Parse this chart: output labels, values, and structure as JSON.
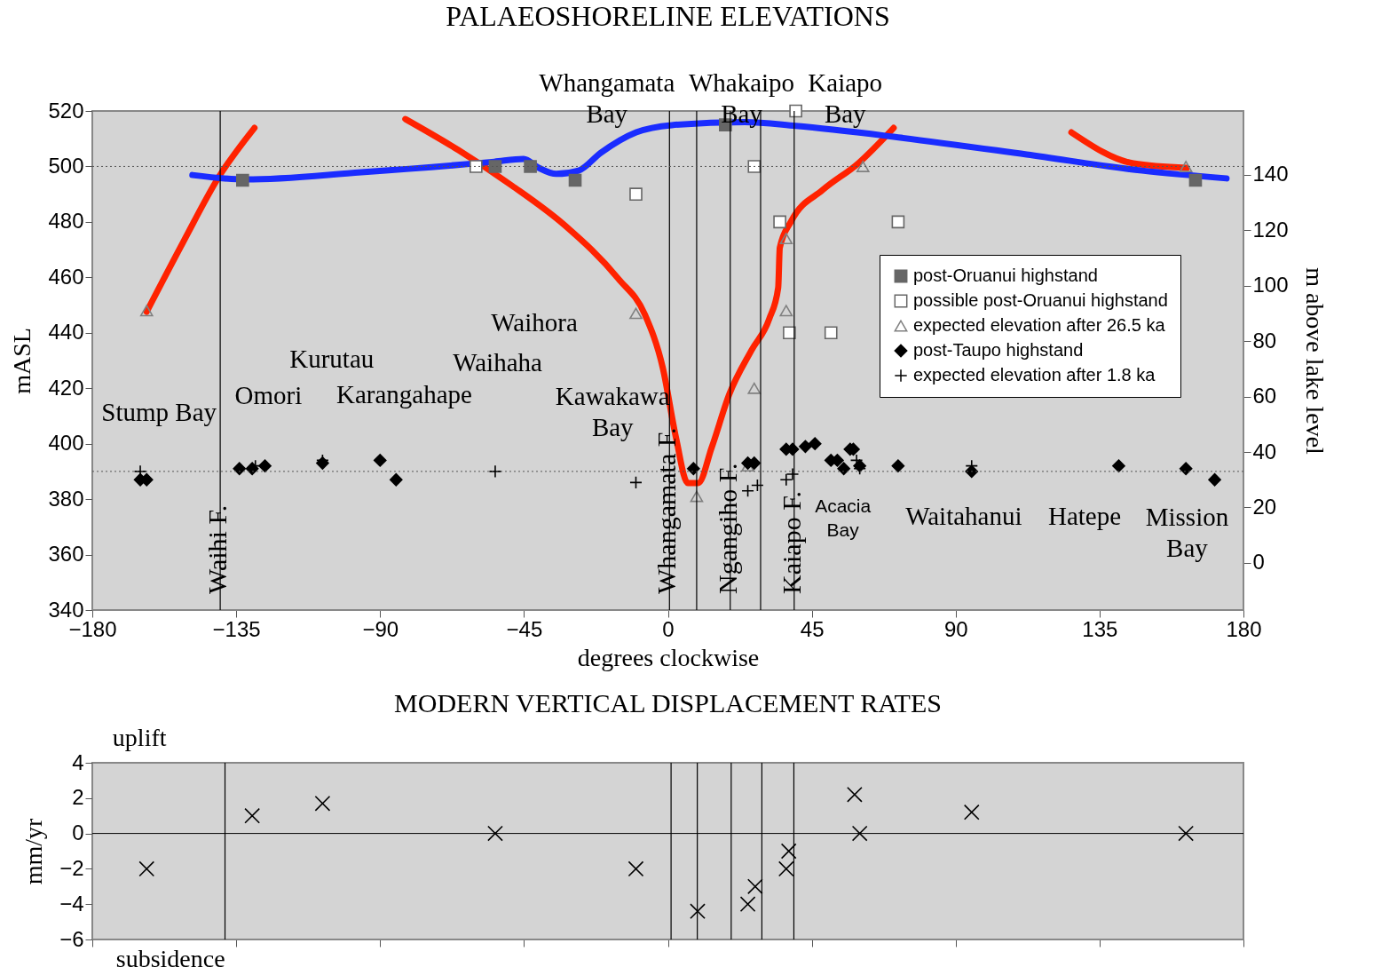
{
  "chart_data": [
    {
      "type": "scatter",
      "title": "PALAEOSHORELINE ELEVATIONS",
      "xlabel": "degrees clockwise",
      "ylabel": "mASL",
      "y2label": "m above lake level",
      "xlim": [
        -180,
        180
      ],
      "xticks": [
        -180,
        -135,
        -90,
        -45,
        0,
        45,
        90,
        135,
        180
      ],
      "ylim": [
        340,
        520
      ],
      "yticks": [
        340,
        360,
        380,
        400,
        420,
        440,
        460,
        480,
        500,
        520
      ],
      "y2lim": [
        -17,
        163
      ],
      "y2ticks": [
        0,
        20,
        40,
        60,
        80,
        100,
        120,
        140
      ],
      "grid": false,
      "legend": "right",
      "series": [
        {
          "name": "post-Oruanui highstand",
          "color": "#666666",
          "marker": "square",
          "x": [
            -133,
            -54,
            -43,
            -29,
            18,
            165
          ],
          "values": [
            495,
            500,
            500,
            495,
            515,
            495
          ]
        },
        {
          "name": "possible post-Oruanui highstand",
          "color": "#666666",
          "marker": "square-open",
          "x": [
            -60,
            -10,
            27,
            40,
            35,
            38,
            51,
            72
          ],
          "values": [
            500,
            490,
            500,
            520,
            480,
            440,
            440,
            480
          ]
        },
        {
          "name": "expected elevation after 26.5 ka",
          "color": "#808080",
          "marker": "triangle",
          "x": [
            -163,
            -10,
            9,
            25,
            27,
            37,
            37,
            61,
            162
          ],
          "values": [
            448,
            447,
            381,
            392,
            420,
            474,
            448,
            500,
            500
          ]
        },
        {
          "name": "post-Taupo highstand",
          "color": "#000000",
          "marker": "diamond",
          "x": [
            -165,
            -163,
            -134,
            -130,
            -126,
            -108,
            -90,
            -85,
            8,
            25,
            27,
            37,
            39,
            43,
            46,
            51,
            53,
            55,
            57,
            58,
            60,
            72,
            95,
            141,
            162,
            171
          ],
          "values": [
            387,
            387,
            391,
            391,
            392,
            393,
            394,
            387,
            391,
            393,
            393,
            398,
            398,
            399,
            400,
            394,
            394,
            391,
            398,
            398,
            392,
            392,
            390,
            392,
            391,
            387
          ]
        },
        {
          "name": "expected elevation after 1.8 ka",
          "color": "#000000",
          "marker": "cross",
          "x": [
            -165,
            -129,
            -108,
            -54,
            -10,
            25,
            28,
            37,
            39,
            59,
            60,
            95
          ],
          "values": [
            390,
            392,
            394,
            390,
            386,
            383,
            385,
            387,
            389,
            394,
            391,
            392
          ]
        },
        {
          "type": "line",
          "color": "#ff2200",
          "x": [
            -163,
            -151.5,
            -140.4,
            -129.3,
            -118.2,
            -109.8,
            -98.8,
            -82.1,
            -65.5,
            -48.8,
            -32.2,
            -15.5,
            -7.2,
            -1.6,
            2.6,
            6.2,
            9.5,
            13.7,
            19.2,
            26.2,
            31.7,
            34.5,
            35,
            38.6,
            48.4,
            59.5,
            70.6,
            81.7,
            92.8,
            106.7,
            126.2,
            145.6,
            162.3
          ],
          "values": [
            447.6,
            472.9,
            496.3,
            513.9,
            null,
            null,
            null,
            517.1,
            505.9,
            493.1,
            478.7,
            459.5,
            446.6,
            427.4,
            401.8,
            385.8,
            385.8,
            398.6,
            417.8,
            433.8,
            445,
            456.3,
            470.7,
            480.3,
            491.5,
            501.1,
            513.9,
            null,
            null,
            null,
            512.3,
            501.1,
            499.5
          ]
        },
        {
          "type": "line",
          "color": "#1a2cff",
          "x": [
            -148.7,
            -132,
            -95.9,
            -54.3,
            -45.1,
            -40.4,
            -34.9,
            -27.9,
            -21,
            -9.9,
            1.2,
            24,
            40,
            70.6,
            112.2,
            148.3,
            174.7
          ],
          "values": [
            496.9,
            495.3,
            497.9,
            501.7,
            502.7,
            499.5,
            497.3,
            498.5,
            504.9,
            512.3,
            514.9,
            516,
            514.6,
            510.7,
            504.3,
            498.5,
            495.7
          ]
        }
      ],
      "ref_lines": [
        {
          "axis": "x",
          "value": -140,
          "label": "Waihi F.",
          "color": "#000000"
        },
        {
          "axis": "x",
          "value": 0.5,
          "label": "Whangamata F.",
          "color": "#000000"
        },
        {
          "axis": "x",
          "value": 9,
          "color": "#000000"
        },
        {
          "axis": "x",
          "value": 19.5,
          "label": "Ngangiho F.",
          "color": "#000000"
        },
        {
          "axis": "x",
          "value": 29,
          "color": "#000000"
        },
        {
          "axis": "x",
          "value": 39.5,
          "label": "Kaiapo F.",
          "color": "#000000"
        },
        {
          "axis": "y",
          "value": 500,
          "color": "#555555",
          "line_style": "dotted"
        },
        {
          "axis": "y",
          "value": 390,
          "color": "#555555",
          "line_style": "dotted"
        }
      ],
      "annotations": [
        "Stump Bay",
        "Omori",
        "Kurutau",
        "Karangahape",
        "Waihaha",
        "Waihora",
        "Kawakawa\nBay",
        "Whangamata\nBay",
        "Whakaipo\nBay",
        "Kaiapo\nBay",
        "Acacia\nBay",
        "Waitahanui",
        "Hatepe",
        "Mission\nBay"
      ]
    },
    {
      "type": "scatter",
      "title": "MODERN VERTICAL DISPLACEMENT RATES",
      "ylabel": "mm/yr",
      "xlim": [
        -180,
        180
      ],
      "xticks": [
        -180,
        -135,
        -90,
        -45,
        0,
        45,
        90,
        135,
        180
      ],
      "ylim": [
        -6,
        4
      ],
      "yticks": [
        -6,
        -4,
        -2,
        0,
        2,
        4
      ],
      "tick_labels": "y",
      "grid": false,
      "series": [
        {
          "color": "#000000",
          "marker": "x",
          "x": [
            -163,
            -130,
            -108,
            -54,
            -10,
            9.3,
            25,
            27.3,
            37,
            37.8,
            58.4,
            60,
            95,
            162
          ],
          "values": [
            -2,
            1,
            1.7,
            0,
            -2,
            -4.4,
            -4,
            -3,
            -2,
            -1,
            2.2,
            0,
            1.2,
            0
          ]
        }
      ],
      "ref_lines": [
        {
          "axis": "x",
          "value": -138.5,
          "color": "#000000"
        },
        {
          "axis": "x",
          "value": 1,
          "color": "#000000"
        },
        {
          "axis": "x",
          "value": 9.2,
          "color": "#000000"
        },
        {
          "axis": "x",
          "value": 19.8,
          "color": "#000000"
        },
        {
          "axis": "x",
          "value": 29.4,
          "color": "#000000"
        },
        {
          "axis": "x",
          "value": 39.4,
          "color": "#000000"
        },
        {
          "axis": "y",
          "value": 0,
          "color": "#000000",
          "line_style": "solid"
        }
      ],
      "annotations": [
        "uplift",
        "subsidence"
      ]
    }
  ]
}
